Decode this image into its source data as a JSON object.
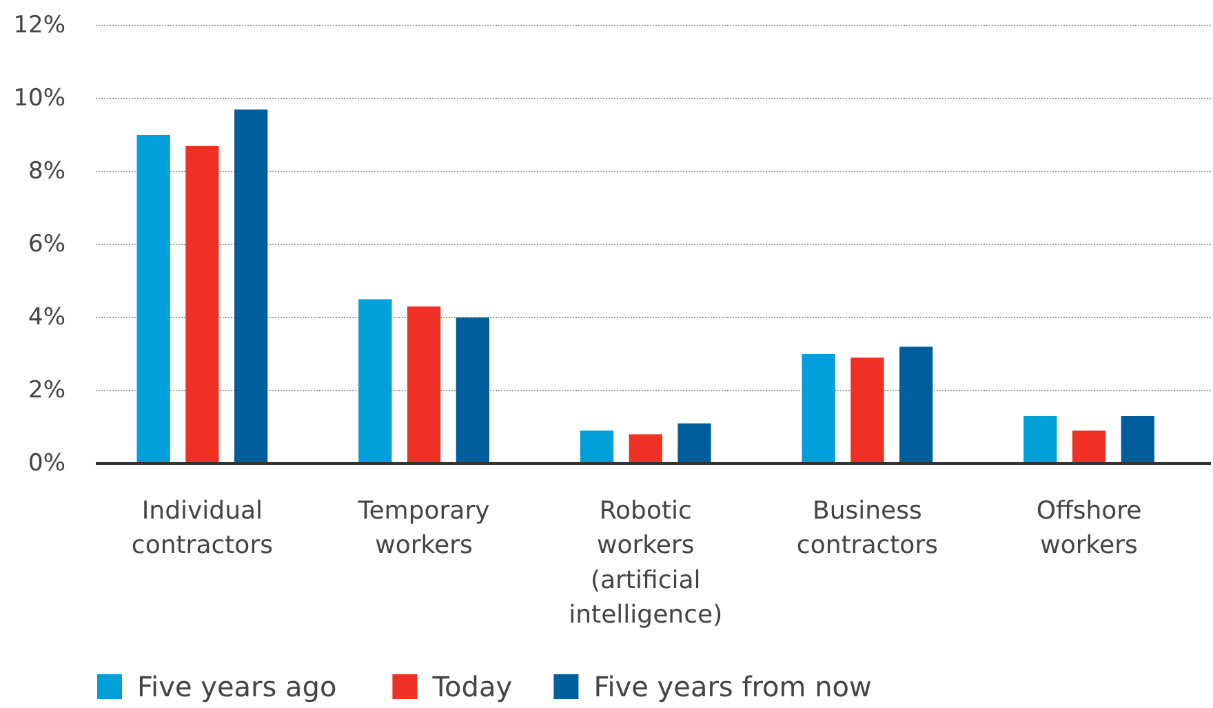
{
  "chart_data": {
    "type": "bar",
    "categories": [
      "Individual contractors",
      "Temporary workers",
      "Robotic workers (artificial intelligence)",
      "Business contractors",
      "Offshore workers"
    ],
    "series": [
      {
        "name": "Five years ago",
        "color": "#009fd9",
        "values": [
          9.0,
          4.5,
          0.9,
          3.0,
          1.3
        ]
      },
      {
        "name": "Today",
        "color": "#ee3124",
        "values": [
          8.7,
          4.3,
          0.8,
          2.9,
          0.9
        ]
      },
      {
        "name": "Five years from now",
        "color": "#005e9c",
        "values": [
          9.7,
          4.0,
          1.1,
          3.2,
          1.3
        ]
      }
    ],
    "ylim": [
      0,
      12
    ],
    "yticks": [
      {
        "value": 0,
        "label": "0%"
      },
      {
        "value": 2,
        "label": "2%"
      },
      {
        "value": 4,
        "label": "4%"
      },
      {
        "value": 6,
        "label": "6%"
      },
      {
        "value": 8,
        "label": "8%"
      },
      {
        "value": 10,
        "label": "10%"
      },
      {
        "value": 12,
        "label": "12%"
      }
    ],
    "grid": "y",
    "legend": "bottom"
  }
}
